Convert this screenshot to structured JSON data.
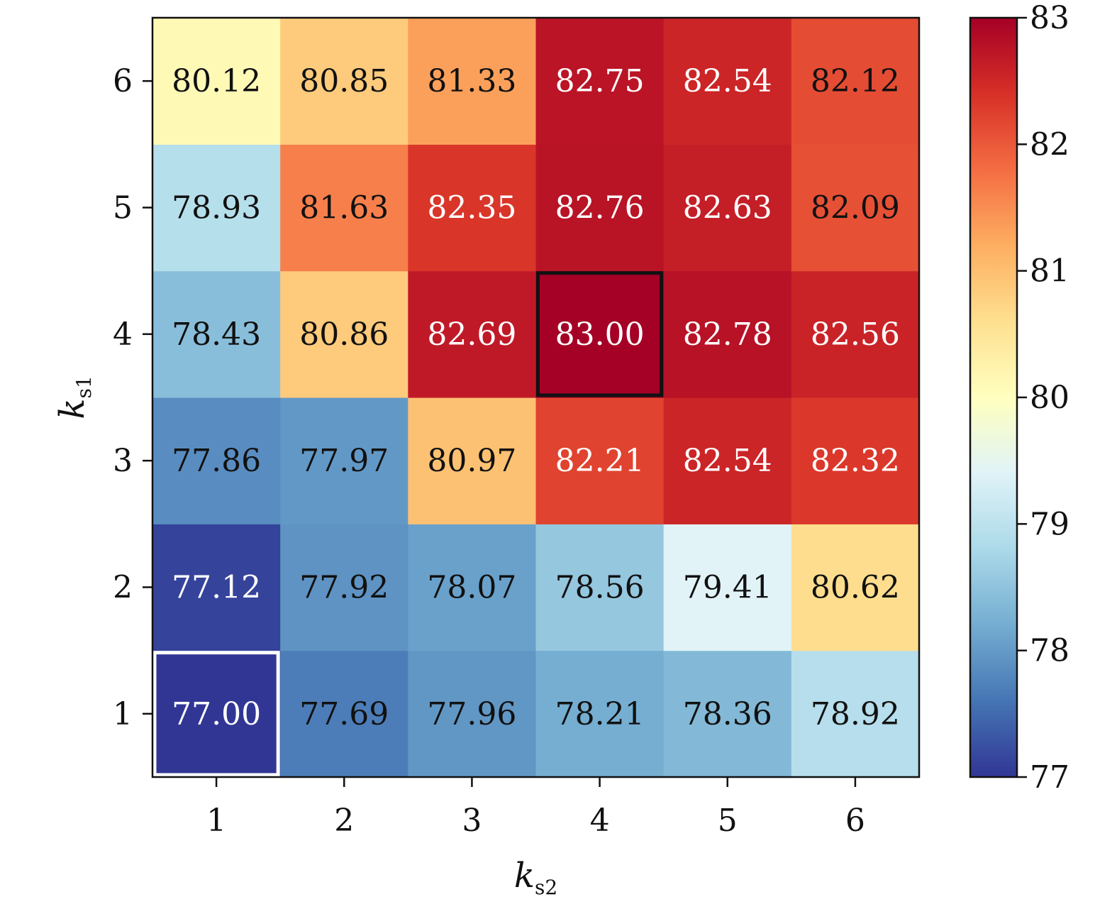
{
  "chart_data": {
    "type": "heatmap",
    "title": "",
    "xlabel": {
      "main": "k",
      "sub": "s2"
    },
    "ylabel": {
      "main": "k",
      "sub": "s1"
    },
    "x": [
      1,
      2,
      3,
      4,
      5,
      6
    ],
    "y": [
      1,
      2,
      3,
      4,
      5,
      6
    ],
    "values": [
      [
        77.0,
        77.69,
        77.96,
        78.21,
        78.36,
        78.92
      ],
      [
        77.12,
        77.92,
        78.07,
        78.56,
        79.41,
        80.62
      ],
      [
        77.86,
        77.97,
        80.97,
        82.21,
        82.54,
        82.32
      ],
      [
        78.43,
        80.86,
        82.69,
        83.0,
        82.78,
        82.56
      ],
      [
        78.93,
        81.63,
        82.35,
        82.76,
        82.63,
        82.09
      ],
      [
        80.12,
        80.85,
        81.33,
        82.75,
        82.54,
        82.12
      ]
    ],
    "value_labels": [
      [
        "77.00",
        "77.69",
        "77.96",
        "78.21",
        "78.36",
        "78.92"
      ],
      [
        "77.12",
        "77.92",
        "78.07",
        "78.56",
        "79.41",
        "80.62"
      ],
      [
        "77.86",
        "77.97",
        "80.97",
        "82.21",
        "82.54",
        "82.32"
      ],
      [
        "78.43",
        "80.86",
        "82.69",
        "83.00",
        "82.78",
        "82.56"
      ],
      [
        "78.93",
        "81.63",
        "82.35",
        "82.76",
        "82.63",
        "82.09"
      ],
      [
        "80.12",
        "80.85",
        "81.33",
        "82.75",
        "82.54",
        "82.12"
      ]
    ],
    "colorbar": {
      "range": [
        77,
        83
      ],
      "ticks": [
        77,
        78,
        79,
        80,
        81,
        82,
        83
      ],
      "colormap": "RdYlBu_r",
      "stops": [
        "#313695",
        "#4575b4",
        "#74add1",
        "#abd9e9",
        "#e0f3f8",
        "#ffffbf",
        "#fee090",
        "#fdae61",
        "#f46d43",
        "#d73027",
        "#a50026"
      ]
    },
    "highlights": [
      {
        "x": 1,
        "y": 1,
        "border_color": "#ffffff"
      },
      {
        "x": 4,
        "y": 4,
        "border_color": "#111111"
      }
    ],
    "text_colors": {
      "light": "#ffffff",
      "dark": "#111111"
    },
    "grid": false
  }
}
